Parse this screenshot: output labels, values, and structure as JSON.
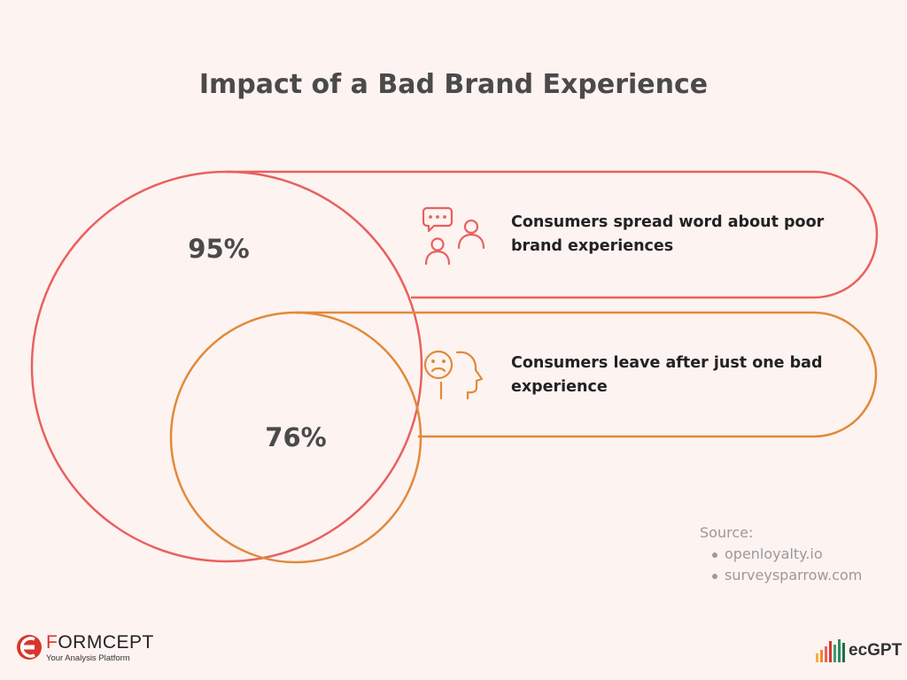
{
  "title": "Impact of a Bad Brand Experience",
  "items": [
    {
      "value": "95%",
      "text": "Consumers spread word about poor brand experiences",
      "icon": "people-talking-icon",
      "color": "#e8615f"
    },
    {
      "value": "76%",
      "text": "Consumers leave after just one bad experience",
      "icon": "sad-face-profile-icon",
      "color": "#e08a3a"
    }
  ],
  "source": {
    "label": "Source:",
    "entries": [
      "openloyalty.io",
      "surveysparrow.com"
    ]
  },
  "footer": {
    "left_logo": {
      "brand_prefix": "F",
      "brand_rest": "ORMCEPT",
      "tagline": "Your Analysis Platform"
    },
    "right_logo": {
      "word": "ecGPT"
    }
  }
}
